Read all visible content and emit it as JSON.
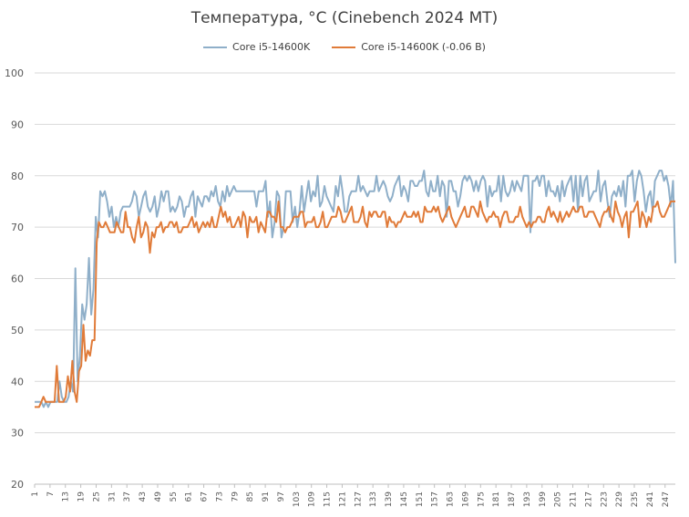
{
  "chart_data": {
    "type": "line",
    "title": "Температура, °C (Cinebench 2024 MT)",
    "xlabel": "",
    "ylabel": "",
    "ylim": [
      20,
      100
    ],
    "yticks": [
      20,
      30,
      40,
      50,
      60,
      70,
      80,
      90,
      100
    ],
    "xlim": [
      1,
      251
    ],
    "xtick_labels": [
      "1",
      "7",
      "13",
      "19",
      "25",
      "31",
      "37",
      "43",
      "49",
      "55",
      "61",
      "67",
      "73",
      "79",
      "85",
      "91",
      "97",
      "103",
      "109",
      "115",
      "121",
      "127",
      "133",
      "139",
      "145",
      "151",
      "157",
      "163",
      "169",
      "175",
      "181",
      "187",
      "193",
      "199",
      "205",
      "211",
      "217",
      "223",
      "229",
      "235",
      "241",
      "247"
    ],
    "grid": "horizontal",
    "legend_position": "top",
    "series": [
      {
        "name": "Core i5-14600K",
        "color": "#8fafc9",
        "values": [
          36,
          36,
          36,
          36,
          35,
          36,
          35,
          36,
          36,
          36,
          36,
          40,
          37,
          36,
          36,
          37,
          40,
          38,
          62,
          40,
          45,
          55,
          52,
          55,
          64,
          53,
          58,
          72,
          68,
          77,
          76,
          77,
          75,
          72,
          74,
          70,
          72,
          70,
          73,
          74,
          74,
          74,
          74,
          75,
          77,
          76,
          72,
          74,
          76,
          77,
          74,
          73,
          74,
          76,
          72,
          74,
          77,
          75,
          77,
          77,
          73,
          74,
          73,
          74,
          76,
          75,
          72,
          74,
          74,
          76,
          77,
          72,
          76,
          75,
          74,
          76,
          76,
          75,
          77,
          76,
          78,
          75,
          74,
          77,
          75,
          78,
          76,
          77,
          78,
          77,
          77,
          77,
          77,
          77,
          77,
          77,
          77,
          77,
          74,
          77,
          77,
          77,
          79,
          72,
          75,
          68,
          71,
          77,
          76,
          68,
          70,
          77,
          77,
          77,
          71,
          74,
          70,
          73,
          78,
          73,
          76,
          79,
          75,
          77,
          76,
          80,
          74,
          75,
          78,
          76,
          75,
          74,
          73,
          78,
          76,
          80,
          77,
          73,
          73,
          76,
          77,
          77,
          77,
          80,
          77,
          78,
          77,
          76,
          77,
          77,
          77,
          80,
          77,
          78,
          79,
          78,
          76,
          75,
          76,
          78,
          79,
          80,
          76,
          78,
          77,
          75,
          79,
          79,
          78,
          78,
          79,
          79,
          81,
          77,
          76,
          79,
          77,
          77,
          80,
          76,
          79,
          78,
          72,
          79,
          79,
          77,
          77,
          74,
          76,
          79,
          80,
          79,
          80,
          79,
          77,
          79,
          77,
          79,
          80,
          79,
          74,
          78,
          76,
          77,
          77,
          80,
          75,
          80,
          77,
          76,
          77,
          79,
          77,
          79,
          78,
          77,
          80,
          80,
          80,
          69,
          79,
          79,
          80,
          78,
          80,
          80,
          76,
          79,
          77,
          77,
          76,
          78,
          75,
          79,
          76,
          78,
          79,
          80,
          75,
          80,
          73,
          80,
          76,
          79,
          80,
          75,
          76,
          77,
          77,
          81,
          75,
          78
        ],
        "tail_values": [
          79,
          75,
          72,
          76,
          77,
          76,
          78,
          76,
          79,
          74,
          80,
          80,
          81,
          75,
          79,
          81,
          80,
          77,
          73,
          76,
          77,
          73,
          79,
          80,
          81,
          81,
          79,
          80,
          78,
          74,
          79,
          63
        ]
      },
      {
        "name": "Core i5-14600K (-0.06 В)",
        "color": "#e07b39",
        "values": [
          35,
          35,
          35,
          36,
          37,
          36,
          36,
          36,
          36,
          36,
          43,
          36,
          36,
          36,
          37,
          41,
          38,
          44,
          38,
          36,
          42,
          43,
          51,
          44,
          46,
          45,
          48,
          48,
          67,
          71,
          70,
          70,
          71,
          70,
          69,
          69,
          69,
          71,
          70,
          69,
          69,
          73,
          70,
          70,
          68,
          67,
          70,
          72,
          68,
          69,
          71,
          70,
          65,
          69,
          68,
          70,
          70,
          71,
          69,
          70,
          70,
          71,
          71,
          70,
          71,
          69,
          69,
          70,
          70,
          70,
          71,
          72,
          70,
          71,
          69,
          70,
          71,
          70,
          71,
          70,
          72,
          70,
          70,
          72,
          74,
          72,
          73,
          71,
          72,
          70,
          70,
          71,
          72,
          70,
          73,
          72,
          68,
          72,
          71,
          71,
          72,
          69,
          71,
          70,
          69,
          73,
          73,
          72,
          72,
          71,
          75,
          70,
          70,
          69,
          70,
          70,
          71,
          72,
          72,
          72,
          73,
          73,
          70,
          71,
          71,
          71,
          72,
          70,
          70,
          71,
          73,
          70,
          70,
          71,
          72,
          72,
          72,
          74,
          73,
          71,
          71,
          72,
          73,
          74,
          71,
          71,
          71,
          72,
          74,
          71,
          70,
          73,
          72,
          73,
          73,
          72,
          72,
          73,
          73,
          70,
          72,
          71,
          71,
          70,
          71,
          71,
          72,
          73,
          72,
          72,
          72,
          73,
          72,
          73,
          71,
          71,
          74,
          73,
          73,
          73,
          74,
          73,
          74,
          72,
          71,
          72,
          73,
          74,
          72,
          71,
          70,
          71,
          72,
          73,
          74,
          72,
          72,
          74,
          74,
          73,
          72,
          75,
          73,
          72,
          71,
          72,
          72,
          73,
          72,
          72,
          70,
          72,
          73,
          73,
          71,
          71,
          71,
          72,
          72,
          74,
          72,
          71,
          70,
          71,
          70,
          71,
          71,
          72,
          72,
          71,
          71,
          73,
          74,
          72,
          73,
          72,
          71,
          73,
          71,
          72,
          73,
          72,
          73,
          74,
          73,
          73,
          74,
          74,
          72,
          72,
          73,
          73,
          73,
          72,
          71,
          70,
          72,
          73
        ],
        "tail_values": [
          73,
          74,
          72,
          71,
          75,
          73,
          72,
          70,
          72,
          73,
          68,
          73,
          73,
          74,
          75,
          70,
          73,
          72,
          70,
          72,
          71,
          74,
          74,
          75,
          73,
          72,
          72,
          73,
          74,
          75,
          75,
          75
        ]
      }
    ]
  }
}
